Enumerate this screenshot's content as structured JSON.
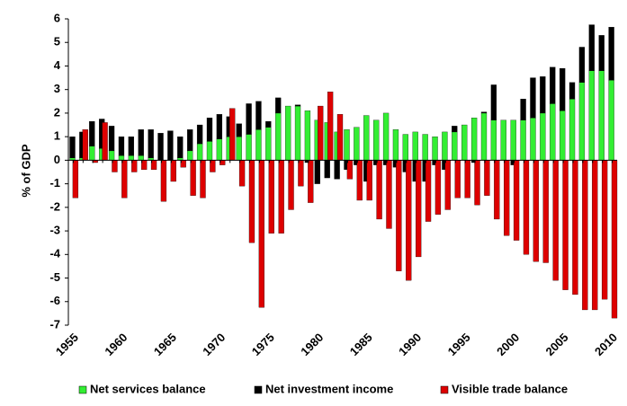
{
  "chart_data": {
    "type": "bar",
    "y_label": "% of GDP",
    "categories": [
      "1955",
      null,
      null,
      null,
      null,
      "1960",
      null,
      null,
      null,
      null,
      "1965",
      null,
      null,
      null,
      null,
      "1970",
      null,
      null,
      null,
      null,
      "1975",
      null,
      null,
      null,
      null,
      "1980",
      null,
      null,
      null,
      null,
      "1985",
      null,
      null,
      null,
      null,
      "1990",
      null,
      null,
      null,
      null,
      "1995",
      null,
      null,
      null,
      null,
      "2000",
      null,
      null,
      null,
      null,
      "2005",
      null,
      null,
      null,
      null,
      "2010"
    ],
    "series": [
      {
        "name": "Net services balance",
        "color": "#33ee33",
        "values": [
          0.1,
          0.1,
          0.6,
          0.5,
          0.4,
          0.2,
          0.2,
          0.2,
          0.1,
          0.0,
          0.0,
          0.1,
          0.4,
          0.7,
          0.8,
          0.9,
          1.0,
          1.0,
          1.1,
          1.3,
          1.4,
          2.0,
          2.3,
          2.3,
          2.1,
          1.7,
          1.6,
          1.2,
          1.3,
          1.4,
          1.9,
          1.7,
          2.0,
          1.3,
          1.1,
          1.2,
          1.1,
          1.0,
          1.2,
          1.2,
          1.5,
          1.8,
          2.0,
          1.7,
          1.7,
          1.7,
          1.7,
          1.8,
          2.0,
          2.4,
          2.1,
          2.6,
          3.3,
          3.8,
          3.8,
          3.4
        ]
      },
      {
        "name": "Net investment income",
        "color": "#000000",
        "values": [
          0.9,
          1.1,
          1.05,
          1.25,
          1.05,
          0.8,
          0.8,
          1.1,
          1.2,
          1.15,
          1.25,
          0.9,
          0.9,
          0.8,
          1.0,
          1.05,
          0.85,
          0.55,
          1.3,
          1.2,
          0.25,
          0.65,
          0.0,
          0.05,
          -0.1,
          -1.0,
          -0.75,
          -0.8,
          -0.4,
          -0.2,
          -0.9,
          -0.2,
          -0.2,
          -0.3,
          -0.5,
          -0.9,
          -0.9,
          -0.2,
          -0.4,
          0.25,
          0.0,
          -0.1,
          0.05,
          1.5,
          0.0,
          -0.2,
          0.9,
          1.7,
          1.55,
          1.55,
          1.8,
          0.7,
          1.5,
          1.95,
          1.5,
          2.25
        ]
      },
      {
        "name": "Visible trade balance",
        "color": "#dd0000",
        "values": [
          -1.6,
          1.3,
          -0.1,
          1.6,
          -0.5,
          -1.6,
          -0.5,
          -0.4,
          -0.4,
          -1.75,
          -0.9,
          -0.3,
          -1.5,
          -1.6,
          -0.5,
          -0.2,
          2.2,
          -1.1,
          -3.5,
          -6.25,
          -3.1,
          -3.1,
          -2.1,
          -1.1,
          -1.8,
          2.3,
          2.9,
          1.95,
          -0.8,
          -1.7,
          -1.7,
          -2.5,
          -2.9,
          -4.7,
          -5.1,
          -4.1,
          -2.6,
          -2.3,
          -2.1,
          -1.6,
          -1.6,
          -1.9,
          -1.5,
          -2.5,
          -3.2,
          -3.4,
          -4.0,
          -4.3,
          -4.35,
          -5.1,
          -5.5,
          -5.7,
          -6.35,
          -6.35,
          -5.9,
          -6.7
        ]
      }
    ],
    "ylim": [
      -7,
      6
    ],
    "yticks": [
      -7,
      -6,
      -5,
      -4,
      -3,
      -2,
      -1,
      0,
      1,
      2,
      3,
      4,
      5,
      6
    ],
    "stacked": true,
    "grid": false,
    "legend": "bottom"
  }
}
